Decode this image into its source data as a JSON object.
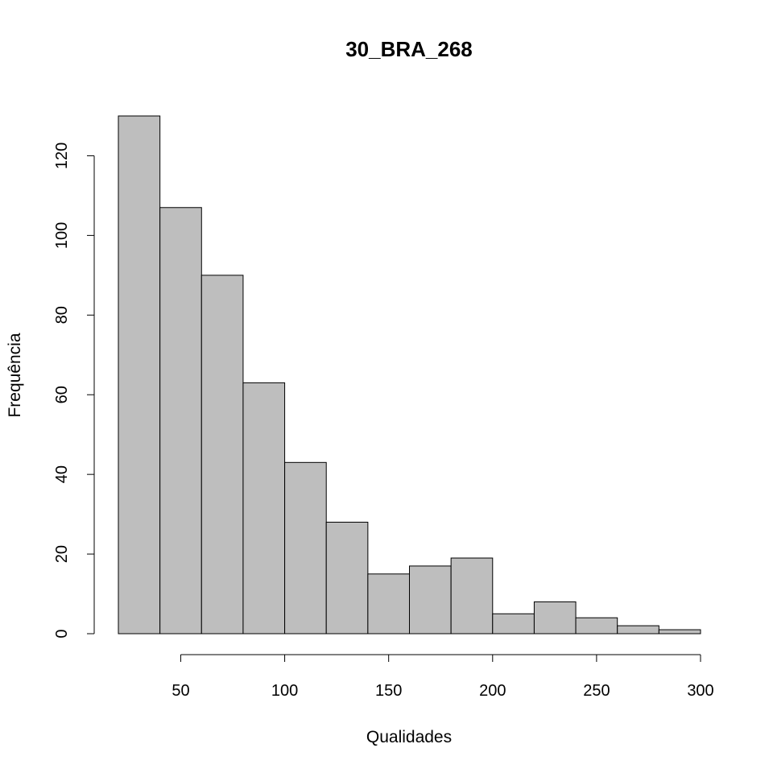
{
  "chart_data": {
    "type": "bar",
    "title": "30_BRA_268",
    "xlabel": "Qualidades",
    "ylabel": "Frequência",
    "bin_edges": [
      20,
      40,
      60,
      80,
      100,
      120,
      140,
      160,
      180,
      200,
      220,
      240,
      260,
      280,
      300
    ],
    "values": [
      130,
      107,
      90,
      63,
      43,
      28,
      15,
      17,
      19,
      5,
      8,
      4,
      2,
      1
    ],
    "x_ticks": [
      50,
      100,
      150,
      200,
      250,
      300
    ],
    "y_ticks": [
      0,
      20,
      40,
      60,
      80,
      100,
      120
    ],
    "xlim": [
      20,
      300
    ],
    "ylim": [
      0,
      130
    ],
    "grid": false,
    "bar_color": "#bebebe"
  }
}
